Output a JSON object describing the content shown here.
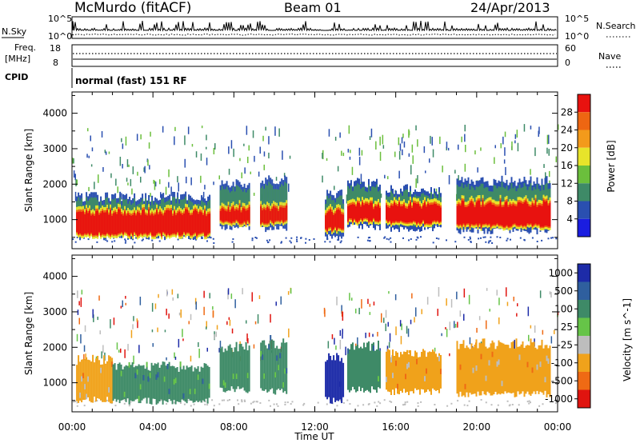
{
  "header": {
    "station": "McMurdo (fitACF)",
    "beam": "Beam 01",
    "date": "24/Apr/2013"
  },
  "noise_panel": {
    "left_label": "N.Sky",
    "right_label": "N.Search",
    "left_ticks": [
      "10^5",
      "10^0"
    ],
    "right_ticks": [
      "10^5",
      "10^0"
    ]
  },
  "freq_panel": {
    "left_label_1": "Freq.",
    "left_label_2": "[MHz]",
    "right_label": "Nave",
    "left_ticks": [
      "18",
      "8"
    ],
    "right_ticks": [
      "60",
      "0"
    ]
  },
  "cpid_panel": {
    "label": "CPID",
    "text": "normal (fast) 151 RF"
  },
  "x_axis": {
    "label": "Time UT",
    "ticks": [
      "00:00",
      "04:00",
      "08:00",
      "12:00",
      "16:00",
      "20:00",
      "00:00"
    ]
  },
  "chart_data": [
    {
      "type": "heatmap",
      "title": "",
      "xlabel": "Time UT",
      "ylabel": "Slant Range [km]",
      "x_range_hours": [
        0,
        24
      ],
      "ylim": [
        180,
        4600
      ],
      "y_ticks": [
        1000,
        2000,
        3000,
        4000
      ],
      "colorbar": {
        "label": "Power [dB]",
        "ticks": [
          "28",
          "24",
          "20",
          "16",
          "12",
          "8",
          "4"
        ],
        "colors": [
          "#e8120f",
          "#ee6612",
          "#f39a1b",
          "#e7e42a",
          "#6bbf3c",
          "#3e8a67",
          "#2a4fb0",
          "#1a1de0"
        ]
      },
      "regions": [
        {
          "t": [
            0.2,
            6.8
          ],
          "r": [
            520,
            1650
          ],
          "core": [
            560,
            1200
          ]
        },
        {
          "t": [
            7.3,
            8.8
          ],
          "r": [
            800,
            2000
          ],
          "core": [
            900,
            1300
          ]
        },
        {
          "t": [
            9.3,
            10.6
          ],
          "r": [
            750,
            2100
          ],
          "core": [
            900,
            1300
          ]
        },
        {
          "t": [
            12.5,
            13.4
          ],
          "r": [
            500,
            1700
          ],
          "core": [
            700,
            1200
          ]
        },
        {
          "t": [
            13.6,
            15.2
          ],
          "r": [
            800,
            2050
          ],
          "core": [
            950,
            1400
          ]
        },
        {
          "t": [
            15.5,
            18.2
          ],
          "r": [
            750,
            1850
          ],
          "core": [
            900,
            1400
          ]
        },
        {
          "t": [
            19.0,
            23.6
          ],
          "r": [
            680,
            2100
          ],
          "core": [
            800,
            1450
          ]
        }
      ]
    },
    {
      "type": "heatmap",
      "title": "",
      "xlabel": "Time UT",
      "ylabel": "Slant Range [km]",
      "x_range_hours": [
        0,
        24
      ],
      "ylim": [
        180,
        4600
      ],
      "y_ticks": [
        1000,
        2000,
        3000,
        4000
      ],
      "colorbar": {
        "label": "Velocity [m s^-1]",
        "ticks": [
          "1000",
          "500",
          "100",
          "25",
          "-25",
          "-100",
          "-500",
          "-1000"
        ],
        "colors": [
          "#1d2ba8",
          "#2f5f9e",
          "#3e8a67",
          "#66c448",
          "#bdbdbd",
          "#f0a21b",
          "#ef6a14",
          "#e0140f"
        ]
      },
      "regions": [
        {
          "t": [
            0.2,
            2.0
          ],
          "r": [
            520,
            1650
          ],
          "v": "-100"
        },
        {
          "t": [
            2.0,
            6.8
          ],
          "r": [
            480,
            1450
          ],
          "v": "100"
        },
        {
          "t": [
            7.3,
            8.8
          ],
          "r": [
            800,
            2000
          ],
          "v": "100"
        },
        {
          "t": [
            9.3,
            10.6
          ],
          "r": [
            750,
            2100
          ],
          "v": "100"
        },
        {
          "t": [
            12.5,
            13.4
          ],
          "r": [
            500,
            1700
          ],
          "v": "1000"
        },
        {
          "t": [
            13.6,
            15.2
          ],
          "r": [
            800,
            2050
          ],
          "v": "100"
        },
        {
          "t": [
            15.5,
            18.2
          ],
          "r": [
            750,
            1850
          ],
          "v": "-100"
        },
        {
          "t": [
            19.0,
            23.6
          ],
          "r": [
            680,
            2100
          ],
          "v": "-100"
        }
      ]
    }
  ]
}
